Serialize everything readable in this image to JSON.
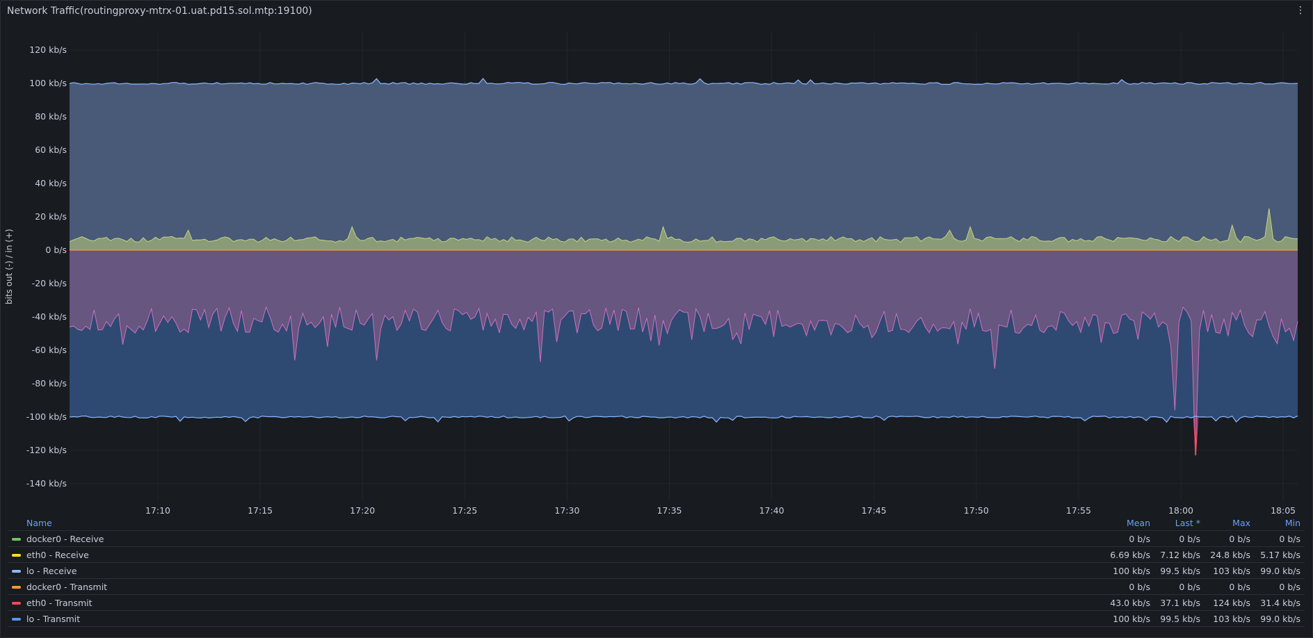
{
  "panel": {
    "title": "Network Traffic(routingproxy-mtrx-01.uat.pd15.sol.mtp:19100)",
    "menu_icon": "⋮"
  },
  "chart_data": {
    "type": "area",
    "ylabel": "bits out (-) / in (+)",
    "ylim": [
      -150,
      130
    ],
    "y_ticks": [
      120,
      100,
      80,
      60,
      40,
      20,
      0,
      -20,
      -40,
      -60,
      -80,
      -100,
      -120,
      -140
    ],
    "y_tick_labels": [
      "120 kb/s",
      "100 kb/s",
      "80 kb/s",
      "60 kb/s",
      "40 kb/s",
      "20 kb/s",
      "0 b/s",
      "-20 kb/s",
      "-40 kb/s",
      "-60 kb/s",
      "-80 kb/s",
      "-100 kb/s",
      "-120 kb/s",
      "-140 kb/s"
    ],
    "x_tick_labels": [
      "17:10",
      "17:15",
      "17:20",
      "17:25",
      "17:30",
      "17:35",
      "17:40",
      "17:45",
      "17:50",
      "17:55",
      "18:00",
      "18:05"
    ],
    "x_range": [
      "17:05:45",
      "18:06:00"
    ],
    "series": [
      {
        "name": "lo - Receive",
        "color": "#8ab8ff",
        "fill": "#485a78",
        "summary": "approx 100 kb/s, range 99.0-103 kb/s"
      },
      {
        "name": "eth0 - Receive",
        "color": "#fade2a",
        "fill": "#8a9b78",
        "baseline": 6.5,
        "spikes": [
          [
            0.097,
            12
          ],
          [
            0.23,
            14
          ],
          [
            0.483,
            14
          ],
          [
            0.717,
            12
          ],
          [
            0.732,
            14
          ],
          [
            0.945,
            15
          ],
          [
            0.977,
            25
          ]
        ]
      },
      {
        "name": "eth0 - Transmit",
        "color": "#f2495c",
        "fill": "#67567f",
        "baseline": -42,
        "spikes": [
          [
            0.184,
            -66
          ],
          [
            0.25,
            -66
          ],
          [
            0.384,
            -67
          ],
          [
            0.752,
            -71
          ],
          [
            0.901,
            -96
          ],
          [
            0.917,
            -123
          ]
        ]
      },
      {
        "name": "lo - Transmit",
        "color": "#5794f2",
        "fill": "#2e4a72",
        "summary": "approx -100 kb/s"
      },
      {
        "name": "docker0 - Receive",
        "color": "#73bf69",
        "summary": "0 b/s"
      },
      {
        "name": "docker0 - Transmit",
        "color": "#ff9830",
        "summary": "0 b/s"
      }
    ]
  },
  "legend": {
    "headers": {
      "name": "Name",
      "mean": "Mean",
      "last": "Last *",
      "max": "Max",
      "min": "Min"
    },
    "rows": [
      {
        "name": "docker0 - Receive",
        "color": "#73bf69",
        "mean": "0 b/s",
        "last": "0 b/s",
        "max": "0 b/s",
        "min": "0 b/s"
      },
      {
        "name": "eth0 - Receive",
        "color": "#fade2a",
        "mean": "6.69 kb/s",
        "last": "7.12 kb/s",
        "max": "24.8 kb/s",
        "min": "5.17 kb/s"
      },
      {
        "name": "lo - Receive",
        "color": "#8ab8ff",
        "mean": "100 kb/s",
        "last": "99.5 kb/s",
        "max": "103 kb/s",
        "min": "99.0 kb/s"
      },
      {
        "name": "docker0 - Transmit",
        "color": "#ff9830",
        "mean": "0 b/s",
        "last": "0 b/s",
        "max": "0 b/s",
        "min": "0 b/s"
      },
      {
        "name": "eth0 - Transmit",
        "color": "#f2495c",
        "mean": "43.0 kb/s",
        "last": "37.1 kb/s",
        "max": "124 kb/s",
        "min": "31.4 kb/s"
      },
      {
        "name": "lo - Transmit",
        "color": "#5794f2",
        "mean": "100 kb/s",
        "last": "99.5 kb/s",
        "max": "103 kb/s",
        "min": "99.0 kb/s"
      }
    ]
  }
}
